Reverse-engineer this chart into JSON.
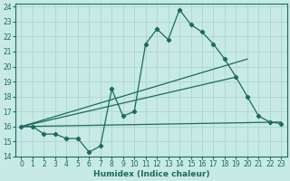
{
  "xlabel": "Humidex (Indice chaleur)",
  "bg_color": "#c8eae4",
  "grid_color": "#b0d8d0",
  "line_color": "#1a6b60",
  "xlim": [
    -0.5,
    23.5
  ],
  "ylim": [
    14,
    24.2
  ],
  "xticks": [
    0,
    1,
    2,
    3,
    4,
    5,
    6,
    7,
    8,
    9,
    10,
    11,
    12,
    13,
    14,
    15,
    16,
    17,
    18,
    19,
    20,
    21,
    22,
    23
  ],
  "yticks": [
    14,
    15,
    16,
    17,
    18,
    19,
    20,
    21,
    22,
    23,
    24
  ],
  "line1_x": [
    0,
    1,
    2,
    3,
    4,
    5,
    6,
    7,
    8,
    9,
    10,
    11,
    12,
    13,
    14,
    15,
    16,
    17,
    18,
    19,
    20,
    21,
    22,
    23
  ],
  "line1_y": [
    16,
    16,
    15.5,
    15.5,
    15.2,
    15.2,
    14.3,
    14.7,
    18.5,
    16.7,
    17.0,
    21.5,
    22.5,
    21.8,
    23.8,
    22.8,
    22.3,
    21.5,
    20.5,
    19.3,
    18.0,
    16.7,
    16.3,
    16.2
  ],
  "line2_x": [
    0,
    23
  ],
  "line2_y": [
    16,
    16.3
  ],
  "line3_x": [
    0,
    20
  ],
  "line3_y": [
    16,
    20.5
  ],
  "line4_x": [
    0,
    19
  ],
  "line4_y": [
    16,
    19.3
  ]
}
